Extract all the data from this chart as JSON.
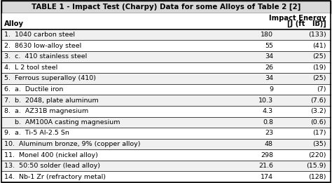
{
  "title": "TABLE 1 - Impact Test (Charpy) Data for some Alloys of Table 2 [2]",
  "rows": [
    [
      "1.  1040 carbon steel",
      "180",
      "(133)"
    ],
    [
      "2.  8630 low-alloy steel",
      "55",
      "(41)"
    ],
    [
      "3.  c.  410 stainless steel",
      "34",
      "(25)"
    ],
    [
      "4.  L 2 tool steel",
      "26",
      "(19)"
    ],
    [
      "5.  Ferrous superalloy (410)",
      "34",
      "(25)"
    ],
    [
      "6.  a.  Ductile iron",
      "9",
      "(7)"
    ],
    [
      "7.  b.  2048, plate aluminum",
      "10.3",
      "(7.6)"
    ],
    [
      "8.  a.  AZ31B magnesium",
      "4.3",
      "(3.2)"
    ],
    [
      "     b.  AM100A casting magnesium",
      "0.8",
      "(0.6)"
    ],
    [
      "9.  a.  Ti-5 Al-2.5 Sn",
      "23",
      "(17)"
    ],
    [
      "10.  Aluminum bronze, 9% (copper alloy)",
      "48",
      "(35)"
    ],
    [
      "11.  Monel 400 (nickel alloy)",
      "298",
      "(220)"
    ],
    [
      "13.  50:50 solder (lead alloy)",
      "21.6",
      "(15.9)"
    ],
    [
      "14.  Nb-1 Zr (refractory metal)",
      "174",
      "(128)"
    ]
  ],
  "line_color": "#000000",
  "text_color": "#000000",
  "title_bg": "#d9d9d9",
  "row_bg_even": "#f0f0f0",
  "row_bg_odd": "#ffffff",
  "font_size": 6.8,
  "title_font_size": 7.4,
  "header_font_size": 7.2
}
